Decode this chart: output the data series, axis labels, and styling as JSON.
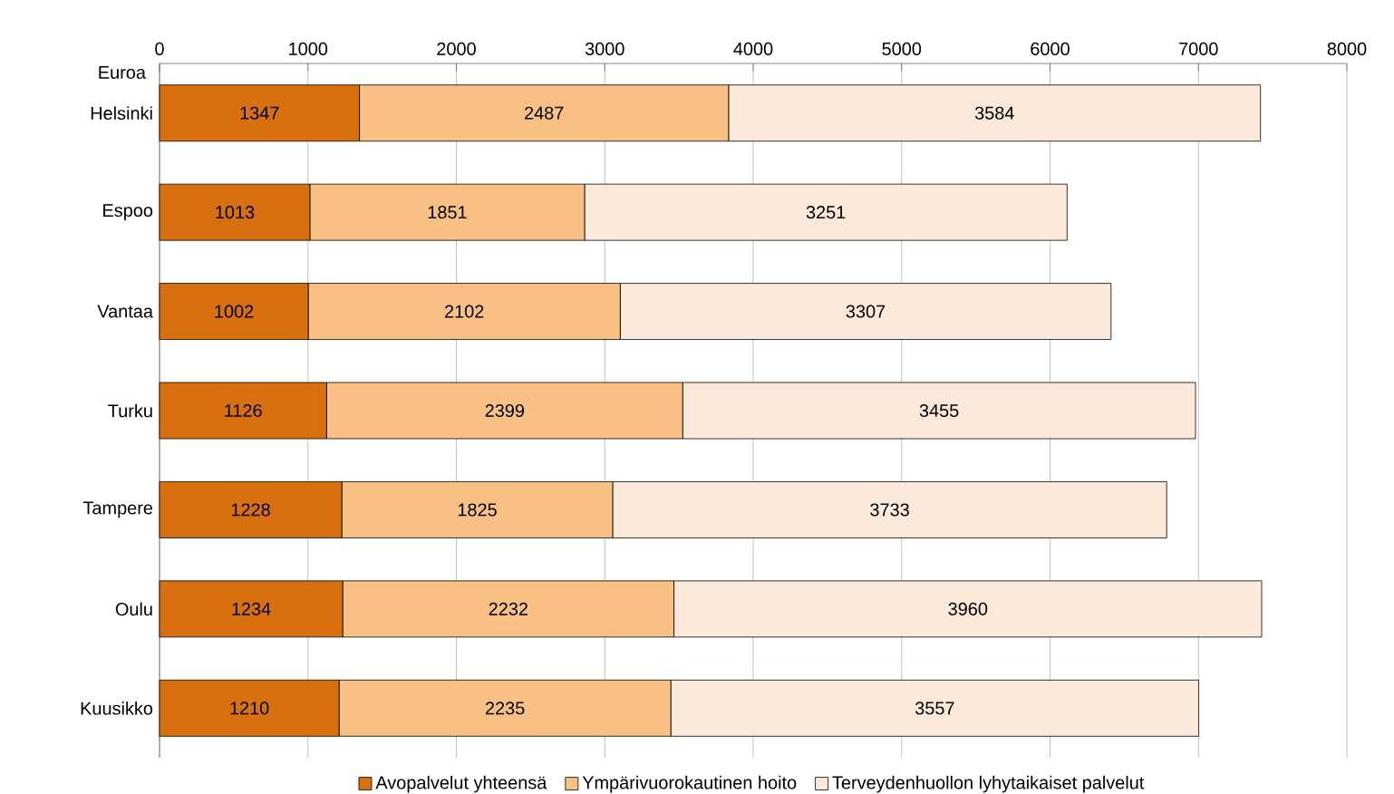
{
  "chart_data": {
    "type": "bar",
    "orientation": "horizontal",
    "stacked": true,
    "xlabel": "Euroa",
    "categories": [
      "Helsinki",
      "Espoo",
      "Vantaa",
      "Turku",
      "Tampere",
      "Oulu",
      "Kuusikko"
    ],
    "series": [
      {
        "name": "Avopalvelut yhteensä",
        "color": "#d9700f",
        "values": [
          1347,
          1013,
          1002,
          1126,
          1228,
          1234,
          1210
        ]
      },
      {
        "name": "Ympärivuorokautinen hoito",
        "color": "#f8c183",
        "values": [
          2487,
          1851,
          2102,
          2399,
          1825,
          2232,
          2235
        ]
      },
      {
        "name": "Terveydenhuollon lyhytaikaiset palvelut",
        "color": "#fde9d9",
        "values": [
          3584,
          3251,
          3307,
          3455,
          3733,
          3960,
          3557
        ]
      }
    ],
    "xlim": [
      0,
      8000
    ],
    "xticks": [
      0,
      1000,
      2000,
      3000,
      4000,
      5000,
      6000,
      7000,
      8000
    ],
    "grid": "x",
    "legend": "bottom",
    "data_labels": true
  }
}
